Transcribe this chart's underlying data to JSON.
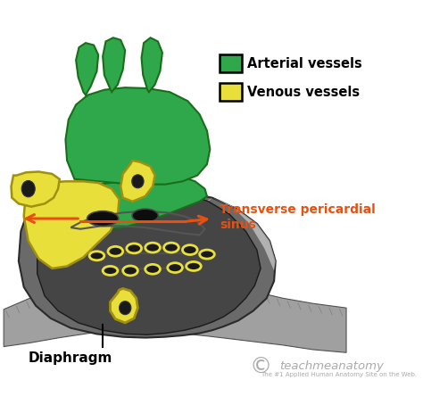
{
  "background_color": "#ffffff",
  "arterial_color": "#2ea84a",
  "arterial_edge": "#1a6e1a",
  "venous_color": "#e8df3a",
  "venous_edge": "#a09010",
  "heart_dark": "#1a1a1a",
  "heart_gray": "#606060",
  "heart_mid": "#909090",
  "heart_light": "#c8c8c8",
  "diaphragm_light": "#b8b8b8",
  "diaphragm_dark": "#808080",
  "arrow_color": "#e85010",
  "label_transverse": "Transverse pericardial\nsinus",
  "label_diaphragm": "Diaphragm",
  "label_arterial": "Arterial vessels",
  "label_venous": "Venous vessels",
  "watermark": "teachmeanatomy",
  "watermark_sub": "The #1 Applied Human Anatomy Site on the Web.",
  "figsize": [
    4.74,
    4.63
  ],
  "dpi": 100
}
